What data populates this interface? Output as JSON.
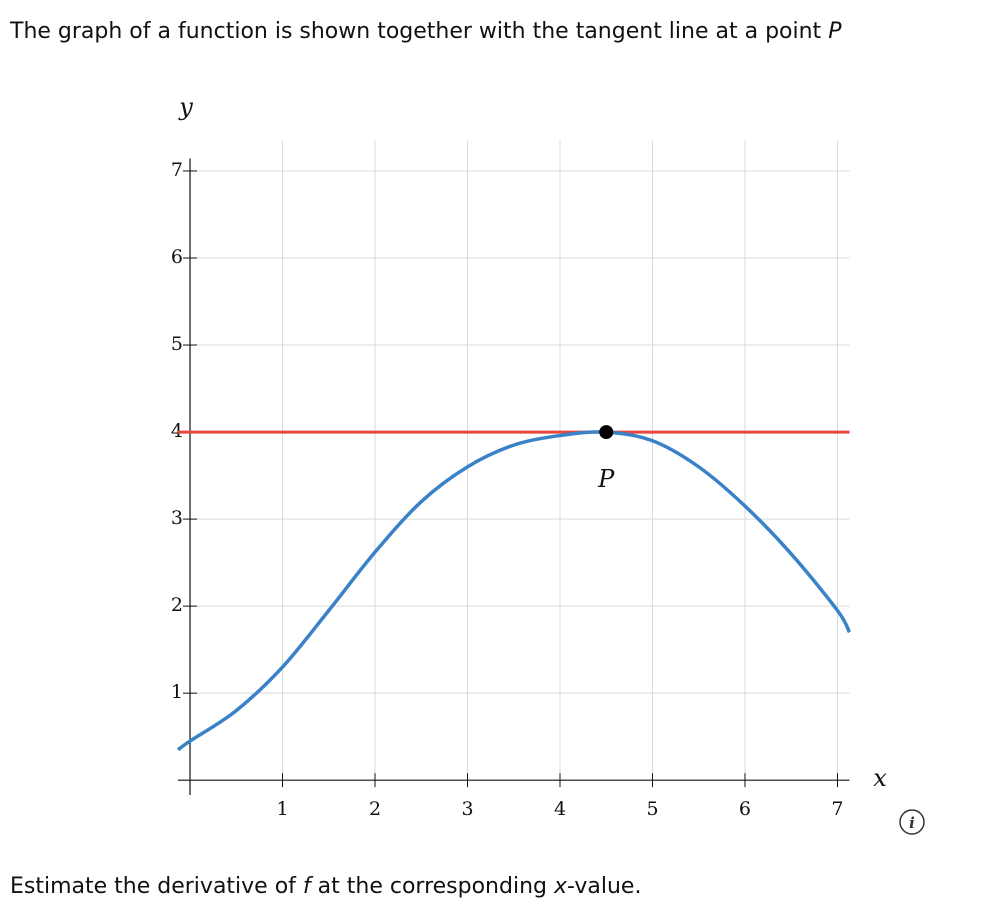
{
  "question": {
    "title": [
      "The graph of a function is shown together with the tangent line at a point ",
      "P"
    ],
    "prompt": [
      "Estimate the derivative of ",
      "f",
      " at the corresponding ",
      "x",
      "-value."
    ]
  },
  "chart_data": {
    "type": "line",
    "xlabel": "x",
    "ylabel": "y",
    "xlim": [
      -0.13,
      7.13
    ],
    "ylim": [
      -0.17,
      7.35
    ],
    "xticks": [
      1,
      2,
      3,
      4,
      5,
      6,
      7
    ],
    "yticks": [
      1,
      2,
      3,
      4,
      5,
      6,
      7
    ],
    "grid": true,
    "x": [
      -0.13,
      0,
      0.5,
      1,
      1.5,
      2,
      2.5,
      3,
      3.5,
      4,
      4.5,
      5,
      5.5,
      6,
      6.5,
      7,
      7.13
    ],
    "series": [
      {
        "color": "#3a82c8",
        "values": [
          0.35,
          0.45,
          0.8,
          1.3,
          1.95,
          2.62,
          3.2,
          3.6,
          3.85,
          3.96,
          4.0,
          3.9,
          3.6,
          3.15,
          2.6,
          1.95,
          1.7
        ]
      }
    ],
    "tangent": {
      "color": "#e8453c",
      "x": [
        -0.13,
        7.13
      ],
      "values": [
        4,
        4
      ]
    },
    "point": {
      "x": 4.5,
      "y": 4,
      "label": "P"
    }
  }
}
